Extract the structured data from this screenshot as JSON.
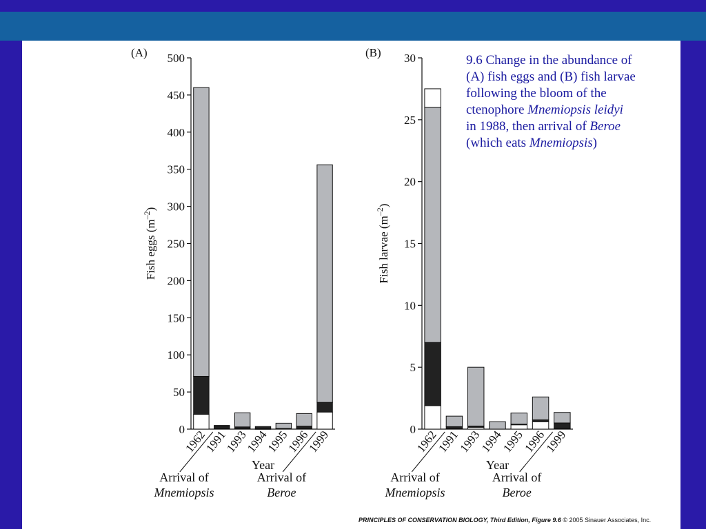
{
  "slide": {
    "caption": {
      "line1": "9.6  Change in the abundance of",
      "line2": "(A) fish eggs and (B) fish larvae",
      "line3": "following the bloom of the",
      "line4_prefix": "ctenophore ",
      "line4_italic": "Mnemiopsis leidyi",
      "line5_prefix": "in 1988, then arrival of ",
      "line5_italic": "Beroe",
      "line6_prefix": "(which eats ",
      "line6_italic": "Mnemiopsis",
      "line6_suffix": ")"
    },
    "credit": {
      "title": "PRINCIPLES OF CONSERVATION BIOLOGY, Third Edition, Figure 9.6",
      "copyright": "© 2005 Sinauer Associates, Inc."
    }
  },
  "colors": {
    "outer_background": "#2a1aa8",
    "top_band": "#1561a0",
    "slide_background": "#ffffff",
    "caption_text": "#1a1aa0",
    "bar_gray": "#b5b7bb",
    "bar_black": "#222222",
    "bar_white": "#ffffff"
  },
  "chart_data": [
    {
      "type": "bar",
      "stacked": true,
      "panel_label": "(A)",
      "xlabel": "Year",
      "ylabel": "Fish eggs (m",
      "ylabel_sup": "–2",
      "ylabel_close": ")",
      "ylim": [
        0,
        500
      ],
      "yticks": [
        0,
        50,
        100,
        150,
        200,
        250,
        300,
        350,
        400,
        450,
        500
      ],
      "categories": [
        "1962",
        "1991",
        "1993",
        "1994",
        "1995",
        "1996",
        "1999"
      ],
      "series": [
        {
          "color": "white",
          "values": [
            20,
            1,
            1,
            0.5,
            1,
            1,
            23
          ]
        },
        {
          "color": "black",
          "values": [
            51,
            3,
            2,
            3,
            0,
            3,
            13
          ]
        },
        {
          "color": "gray",
          "values": [
            389,
            1,
            19,
            0,
            7,
            17,
            320
          ]
        }
      ],
      "annotations": [
        {
          "line1": "Arrival of",
          "line2_italic": "Mnemiopsis"
        },
        {
          "line1": "Arrival of",
          "line2_italic": "Beroe"
        }
      ]
    },
    {
      "type": "bar",
      "stacked": true,
      "panel_label": "(B)",
      "xlabel": "Year",
      "ylabel": "Fish larvae (m",
      "ylabel_sup": "–2",
      "ylabel_close": ")",
      "ylim": [
        0,
        30
      ],
      "yticks": [
        0,
        5,
        10,
        15,
        20,
        25,
        30
      ],
      "categories": [
        "1962",
        "1991",
        "1993",
        "1994",
        "1995",
        "1996",
        "1999"
      ],
      "series": [
        {
          "color": "white",
          "values": [
            1.9,
            0.05,
            0.15,
            0,
            0.35,
            0.6,
            0.05
          ]
        },
        {
          "color": "black",
          "values": [
            5.1,
            0.15,
            0.1,
            0,
            0.05,
            0.15,
            0.45
          ]
        },
        {
          "color": "gray",
          "values": [
            19,
            0.85,
            4.75,
            0.6,
            0.9,
            1.85,
            0.85
          ]
        },
        {
          "color": "white",
          "values": [
            1.5,
            0,
            0,
            0,
            0,
            0,
            0
          ]
        }
      ],
      "annotations": [
        {
          "line1": "Arrival of",
          "line2_italic": "Mnemiopsis"
        },
        {
          "line1": "Arrival of",
          "line2_italic": "Beroe"
        }
      ]
    }
  ]
}
